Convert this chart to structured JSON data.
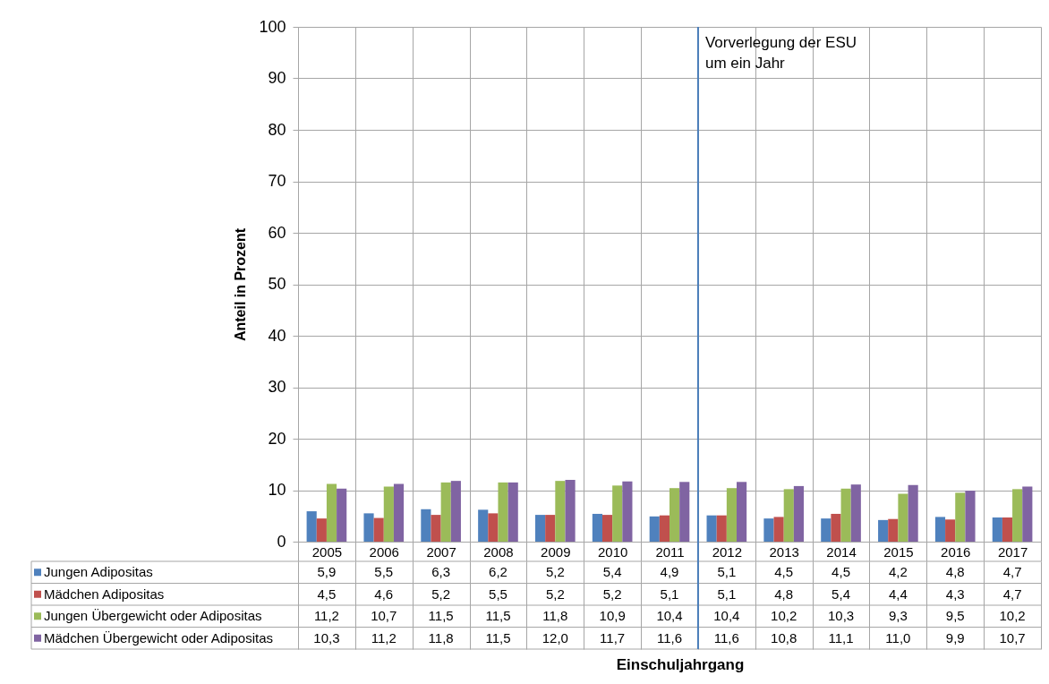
{
  "chart_data": {
    "type": "bar",
    "ylabel": "Anteil in Prozent",
    "annotations": [
      "Einschuljahrgang"
    ],
    "categories": [
      "2005",
      "2006",
      "2007",
      "2008",
      "2009",
      "2010",
      "2011",
      "2012",
      "2013",
      "2014",
      "2015",
      "2016",
      "2017"
    ],
    "series": [
      {
        "name": "Jungen Adipositas",
        "color": "#4f81bd",
        "values": [
          5.9,
          5.5,
          6.3,
          6.2,
          5.2,
          5.4,
          4.9,
          5.1,
          4.5,
          4.5,
          4.2,
          4.8,
          4.7
        ],
        "value_labels": [
          "5,9",
          "5,5",
          "6,3",
          "6,2",
          "5,2",
          "5,4",
          "4,9",
          "5,1",
          "4,5",
          "4,5",
          "4,2",
          "4,8",
          "4,7"
        ]
      },
      {
        "name": "Mädchen Adipositas",
        "color": "#c0504d",
        "values": [
          4.5,
          4.6,
          5.2,
          5.5,
          5.2,
          5.2,
          5.1,
          5.1,
          4.8,
          5.4,
          4.4,
          4.3,
          4.7
        ],
        "value_labels": [
          "4,5",
          "4,6",
          "5,2",
          "5,5",
          "5,2",
          "5,2",
          "5,1",
          "5,1",
          "4,8",
          "5,4",
          "4,4",
          "4,3",
          "4,7"
        ]
      },
      {
        "name": "Jungen Übergewicht oder Adipositas",
        "color": "#9bbb59",
        "values": [
          11.2,
          10.7,
          11.5,
          11.5,
          11.8,
          10.9,
          10.4,
          10.4,
          10.2,
          10.3,
          9.3,
          9.5,
          10.2
        ],
        "value_labels": [
          "11,2",
          "10,7",
          "11,5",
          "11,5",
          "11,8",
          "10,9",
          "10,4",
          "10,4",
          "10,2",
          "10,3",
          "9,3",
          "9,5",
          "10,2"
        ]
      },
      {
        "name": "Mädchen Übergewicht oder Adipositas",
        "color": "#8064a2",
        "values": [
          10.3,
          11.2,
          11.8,
          11.5,
          12.0,
          11.7,
          11.6,
          11.6,
          10.8,
          11.1,
          11.0,
          9.9,
          10.7
        ],
        "value_labels": [
          "10,3",
          "11,2",
          "11,8",
          "11,5",
          "12,0",
          "11,7",
          "11,6",
          "11,6",
          "10,8",
          "11,1",
          "11,0",
          "9,9",
          "10,7"
        ]
      }
    ],
    "ylim": [
      0,
      100
    ],
    "yticks": [
      0,
      10,
      20,
      30,
      40,
      50,
      60,
      70,
      80,
      90,
      100
    ],
    "grid": true,
    "legend": "bottom",
    "ref_lines": [
      {
        "axis": "x",
        "value": "2012",
        "label": "Vorverlegung der ESU\num ein Jahr",
        "color": "#4a7ebb"
      }
    ]
  }
}
